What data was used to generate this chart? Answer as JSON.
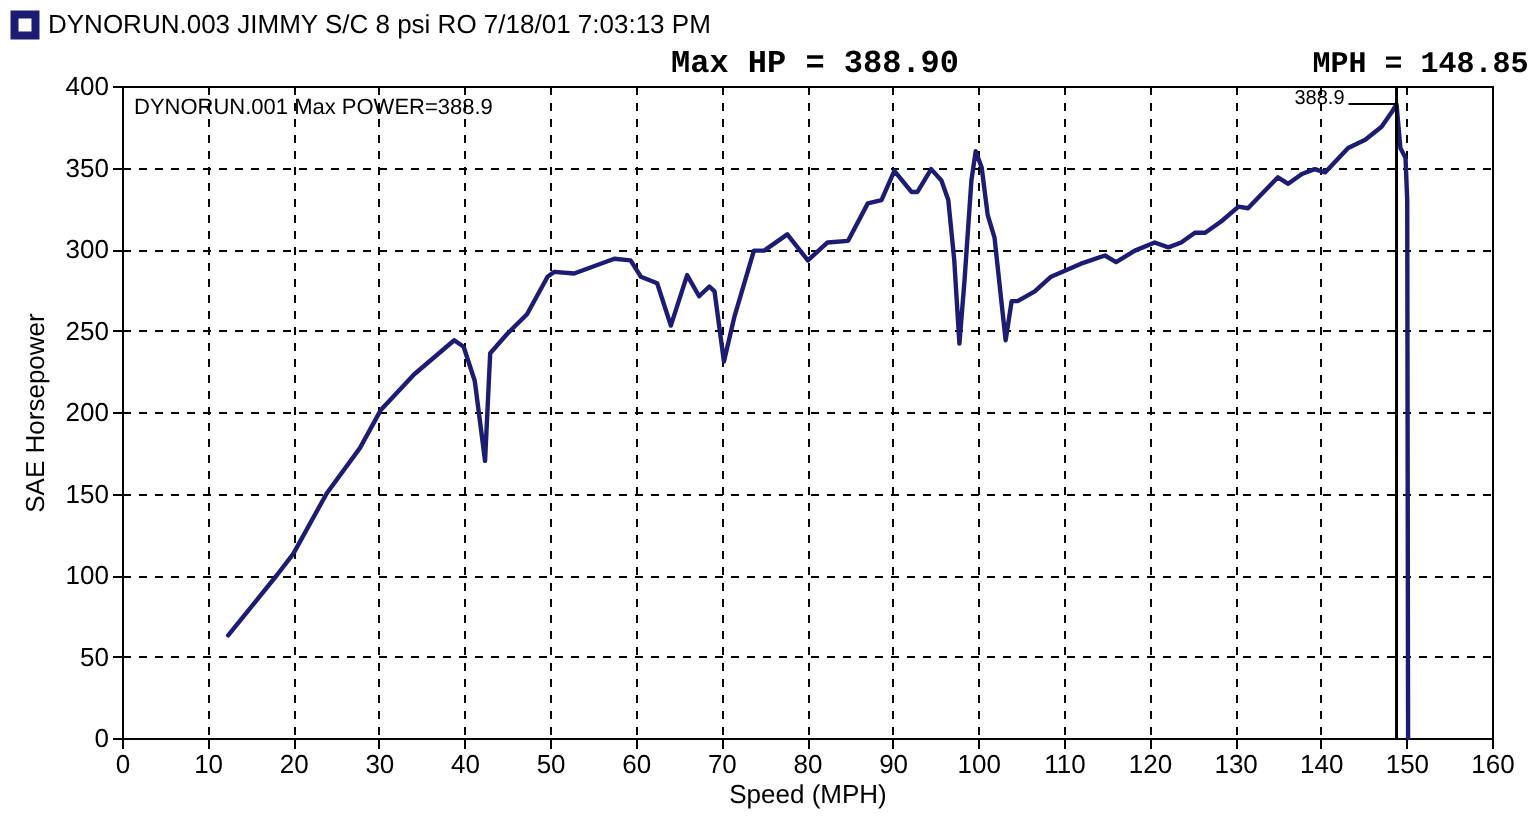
{
  "chart_data": {
    "type": "line",
    "title": "Max HP = 388.90",
    "xlabel": "Speed (MPH)",
    "ylabel": "SAE Horsepower",
    "annotations": [
      "DYNORUN.001 Max POWER=388.9",
      {
        "text": "388.9",
        "x": 148.85,
        "y": 388.9
      }
    ],
    "xlim": [
      0,
      160
    ],
    "xticks": [
      0,
      10,
      20,
      30,
      40,
      50,
      60,
      70,
      80,
      90,
      100,
      110,
      120,
      130,
      140,
      150,
      160
    ],
    "ylim": [
      0,
      400
    ],
    "yticks": [
      0,
      50,
      100,
      150,
      200,
      250,
      300,
      350,
      400
    ],
    "grid": true,
    "legend": "top left",
    "line_style": "solid",
    "ref_lines": [
      {
        "axis": "x",
        "value": 148.85,
        "label": "MPH = 148.85",
        "color": "#000000"
      }
    ],
    "x": [
      12.4,
      18.1,
      20.0,
      23.9,
      27.8,
      30.2,
      34.1,
      38.8,
      39.9,
      41.2,
      42.4,
      43.0,
      45.0,
      47.3,
      49.7,
      50.5,
      52.8,
      57.5,
      59.4,
      60.6,
      62.5,
      64.1,
      66.0,
      67.4,
      68.6,
      69.2,
      70.3,
      71.5,
      73.8,
      75.0,
      77.7,
      80.1,
      82.4,
      84.8,
      87.1,
      88.7,
      90.2,
      92.2,
      92.9,
      94.5,
      95.7,
      96.5,
      97.2,
      97.8,
      98.4,
      99.2,
      99.7,
      100.4,
      101.1,
      101.9,
      102.7,
      103.2,
      103.9,
      104.6,
      106.6,
      108.5,
      112.0,
      114.8,
      116.1,
      118.3,
      120.6,
      122.2,
      123.7,
      125.3,
      126.5,
      128.4,
      130.4,
      131.5,
      133.9,
      135.0,
      136.2,
      137.8,
      139.3,
      140.5,
      143.2,
      145.2,
      147.1,
      148.3,
      148.85,
      149.3,
      149.9,
      150.1,
      150.2
    ],
    "series": [
      {
        "name": "DYNORUN.003 JIMMY S/C 8 psi RO 7/18/01 7:03:13 PM",
        "color": "#1c1c72",
        "values": [
          63,
          100,
          113,
          150,
          178,
          201,
          223,
          244,
          240,
          219,
          170,
          236,
          248,
          260,
          283,
          286,
          285,
          294,
          293,
          283,
          279,
          253,
          284,
          271,
          277,
          274,
          231,
          258,
          299,
          299,
          309,
          293,
          304,
          305,
          328,
          330,
          348,
          335,
          335,
          349,
          342,
          330,
          293,
          242,
          281,
          342,
          360,
          350,
          321,
          307,
          268,
          244,
          268,
          268,
          274,
          283,
          291,
          296,
          292,
          299,
          304,
          301,
          304,
          310,
          310,
          317,
          326,
          325,
          338,
          344,
          340,
          346,
          349,
          347,
          362,
          367,
          375,
          384,
          388.9,
          362,
          356,
          330,
          0
        ]
      }
    ]
  }
}
